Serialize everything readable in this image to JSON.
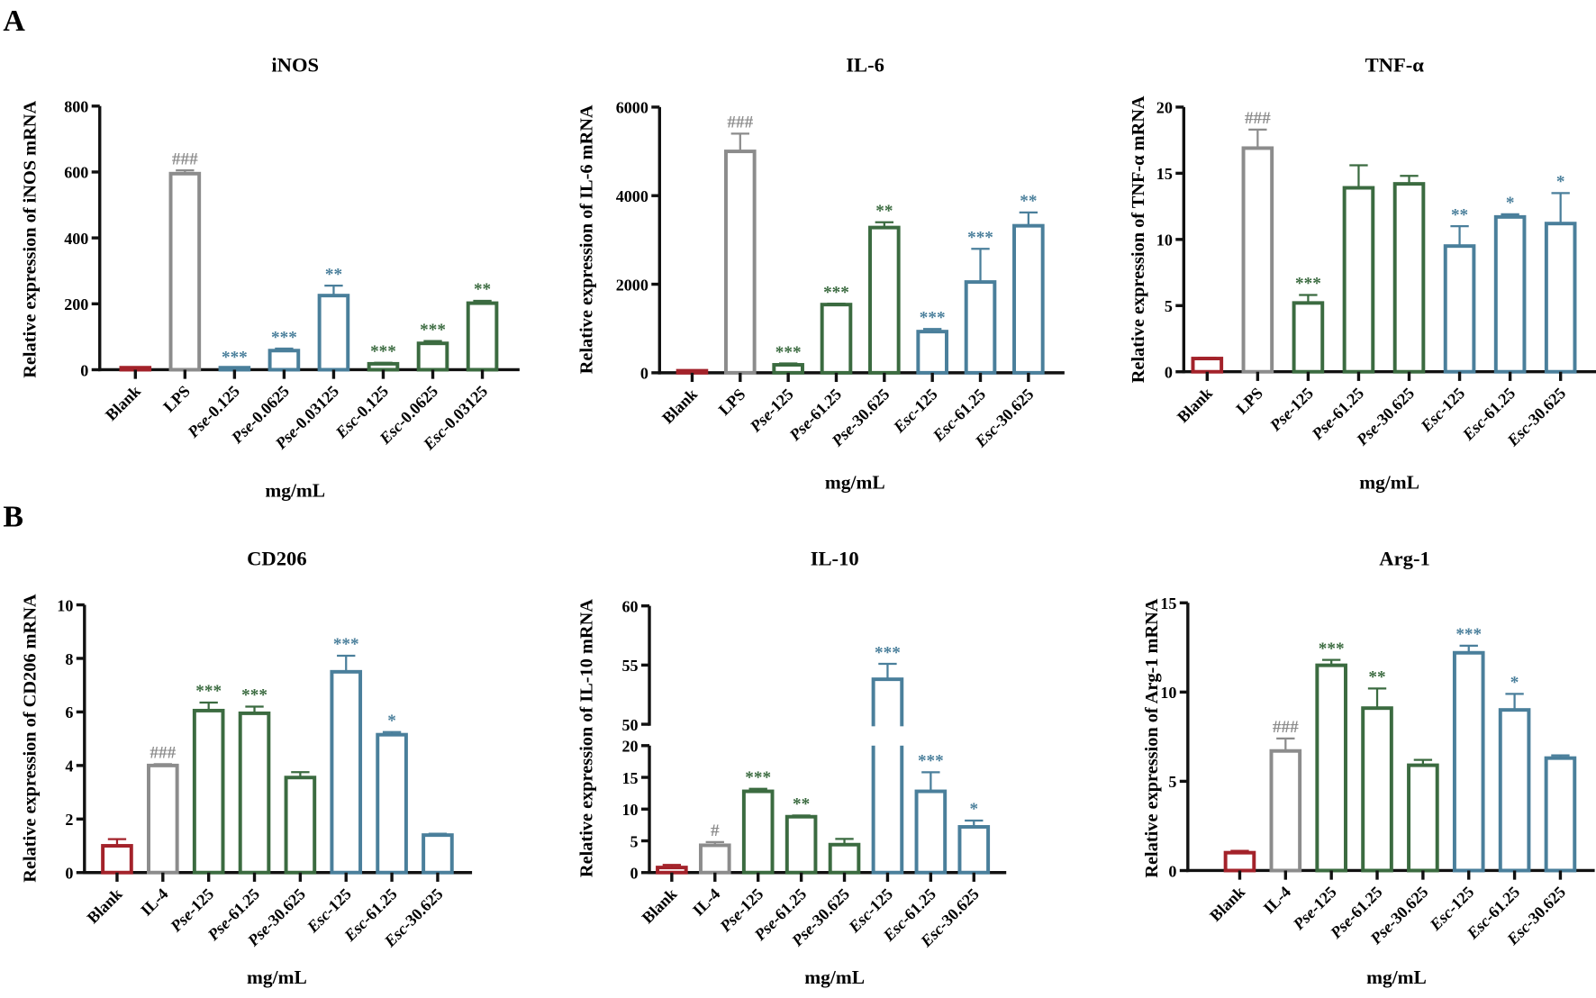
{
  "panel_labels": [
    "A",
    "B"
  ],
  "colors": {
    "blank": "#a3222a",
    "control": "#8c8c8c",
    "green": "#3b6b40",
    "blue": "#4a7f9b",
    "axis": "#111111"
  },
  "chart_data": [
    {
      "type": "bar",
      "panel": "A",
      "title": "iNOS",
      "ylabel": "Relative expression of iNOS mRNA",
      "xlabel": "mg/mL",
      "ylim": [
        0,
        800
      ],
      "yticks": [
        0,
        200,
        400,
        600,
        800
      ],
      "categories": [
        "Blank",
        "LPS",
        "Pse-0.125",
        "Pse-0.0625",
        "Pse-0.03125",
        "Esc-0.125",
        "Esc-0.0625",
        "Esc-0.03125"
      ],
      "values": [
        1,
        595,
        2,
        58,
        225,
        18,
        80,
        202
      ],
      "errors": [
        0.5,
        10,
        1,
        6,
        30,
        3,
        7,
        7
      ],
      "groups": [
        "blank",
        "control",
        "blue",
        "blue",
        "blue",
        "green",
        "green",
        "green"
      ],
      "significance": [
        "",
        "###",
        "***",
        "***",
        "**",
        "***",
        "***",
        "**"
      ]
    },
    {
      "type": "bar",
      "panel": "A",
      "title": "IL-6",
      "ylabel": "Relative expression of IL-6 mRNA",
      "xlabel": "mg/mL",
      "ylim": [
        0,
        6000
      ],
      "yticks": [
        0,
        2000,
        4000,
        6000
      ],
      "categories": [
        "Blank",
        "LPS",
        "Pse-125",
        "Pse-61.25",
        "Pse-30.625",
        "Esc-125",
        "Esc-61.25",
        "Esc-30.625"
      ],
      "values": [
        1,
        5000,
        180,
        1540,
        3280,
        930,
        2050,
        3320
      ],
      "errors": [
        0.5,
        400,
        30,
        20,
        120,
        60,
        750,
        300
      ],
      "groups": [
        "blank",
        "control",
        "green",
        "green",
        "green",
        "blue",
        "blue",
        "blue"
      ],
      "significance": [
        "",
        "###",
        "***",
        "***",
        "**",
        "***",
        "***",
        "**"
      ]
    },
    {
      "type": "bar",
      "panel": "A",
      "title": "TNF-α",
      "ylabel": "Relative expression of TNF-α mRNA",
      "xlabel": "mg/mL",
      "ylim": [
        0,
        20
      ],
      "yticks": [
        0,
        5,
        10,
        15,
        20
      ],
      "categories": [
        "Blank",
        "LPS",
        "Pse-125",
        "Pse-61.25",
        "Pse-30.625",
        "Esc-125",
        "Esc-61.25",
        "Esc-30.625"
      ],
      "values": [
        1.0,
        16.9,
        5.2,
        13.9,
        14.2,
        9.5,
        11.7,
        11.2
      ],
      "errors": [
        0.05,
        1.4,
        0.6,
        1.7,
        0.6,
        1.5,
        0.2,
        2.3
      ],
      "groups": [
        "blank",
        "control",
        "green",
        "green",
        "green",
        "blue",
        "blue",
        "blue"
      ],
      "significance": [
        "",
        "###",
        "***",
        "",
        "",
        "**",
        "*",
        "*"
      ]
    },
    {
      "type": "bar",
      "panel": "B",
      "title": "CD206",
      "ylabel": "Relative expression of CD206 mRNA",
      "xlabel": "mg/mL",
      "ylim": [
        0,
        10
      ],
      "yticks": [
        0,
        2,
        4,
        6,
        8,
        10
      ],
      "categories": [
        "Blank",
        "IL-4",
        "Pse-125",
        "Pse-61.25",
        "Pse-30.625",
        "Esc-125",
        "Esc-61.25",
        "Esc-30.625"
      ],
      "values": [
        1.0,
        4.0,
        6.05,
        5.95,
        3.55,
        7.5,
        5.15,
        1.4
      ],
      "errors": [
        0.25,
        0.05,
        0.3,
        0.25,
        0.2,
        0.6,
        0.1,
        0.05
      ],
      "groups": [
        "blank",
        "control",
        "green",
        "green",
        "green",
        "blue",
        "blue",
        "blue"
      ],
      "significance": [
        "",
        "###",
        "***",
        "***",
        "",
        "***",
        "*",
        ""
      ]
    },
    {
      "type": "bar",
      "panel": "B",
      "title": "IL-10",
      "ylabel": "Relative expression of IL-10 mRNA",
      "xlabel": "mg/mL",
      "ylim": [
        0,
        60
      ],
      "axis_break": [
        20,
        50
      ],
      "yticks": [
        0,
        5,
        10,
        15,
        20,
        50,
        55,
        60
      ],
      "categories": [
        "Blank",
        "IL-4",
        "Pse-125",
        "Pse-61.25",
        "Pse-30.625",
        "Esc-125",
        "Esc-61.25",
        "Esc-30.625"
      ],
      "values": [
        0.8,
        4.3,
        12.8,
        8.8,
        4.4,
        53.8,
        12.8,
        7.2
      ],
      "errors": [
        0.4,
        0.5,
        0.4,
        0.2,
        0.9,
        1.3,
        3.0,
        1.0
      ],
      "groups": [
        "blank",
        "control",
        "green",
        "green",
        "green",
        "blue",
        "blue",
        "blue"
      ],
      "significance": [
        "",
        "#",
        "***",
        "**",
        "",
        "***",
        "***",
        "*"
      ]
    },
    {
      "type": "bar",
      "panel": "B",
      "title": "Arg-1",
      "ylabel": "Relative expression of Arg-1 mRNA",
      "xlabel": "mg/mL",
      "ylim": [
        0,
        15
      ],
      "yticks": [
        0,
        5,
        10,
        15
      ],
      "categories": [
        "Blank",
        "IL-4",
        "Pse-125",
        "Pse-61.25",
        "Pse-30.625",
        "Esc-125",
        "Esc-61.25",
        "Esc-30.625"
      ],
      "values": [
        1.0,
        6.7,
        11.5,
        9.1,
        5.9,
        12.2,
        9.0,
        6.3
      ],
      "errors": [
        0.1,
        0.7,
        0.3,
        1.1,
        0.3,
        0.4,
        0.9,
        0.15
      ],
      "groups": [
        "blank",
        "control",
        "green",
        "green",
        "green",
        "blue",
        "blue",
        "blue"
      ],
      "significance": [
        "",
        "###",
        "***",
        "**",
        "",
        "***",
        "*",
        ""
      ]
    }
  ]
}
